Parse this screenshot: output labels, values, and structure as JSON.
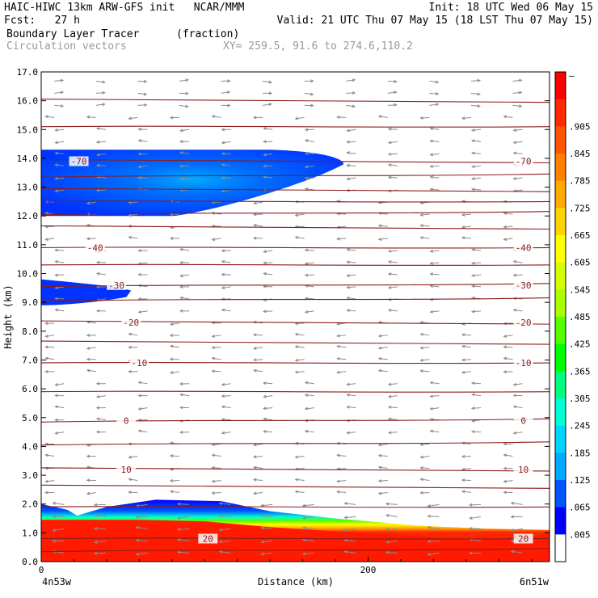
{
  "header": {
    "line1_left": "HAIC-HIWC 13km ARW-GFS init   NCAR/MMM",
    "line1_right": "Init: 18 UTC Wed 06 May 15",
    "line2_left": "Fcst:   27 h",
    "line2_right": "Valid: 21 UTC Thu 07 May 15 (18 LST Thu 07 May 15)",
    "field_name": "Boundary Layer Tracer",
    "field_units": "(fraction)",
    "vectors_label": "Circulation vectors",
    "xy_label": "XY= 259.5, 91.6 to 274.6,110.2"
  },
  "chart_data": {
    "type": "heatmap",
    "xlabel": "Distance (km)",
    "ylabel": "Height (km)",
    "ylim": [
      0,
      17
    ],
    "xlim": [
      0,
      311
    ],
    "x_ticks": [
      {
        "v": 0,
        "label": "0"
      },
      {
        "v": 200,
        "label": "200"
      }
    ],
    "y_ticks": [
      "0.0",
      "1.0",
      "2.0",
      "3.0",
      "4.0",
      "5.0",
      "6.0",
      "7.0",
      "8.0",
      "9.0",
      "10.0",
      "11.0",
      "12.0",
      "13.0",
      "14.0",
      "15.0",
      "16.0",
      "17.0"
    ],
    "x_endpoint_labels": {
      "left": "4n53w",
      "right": "6n51w"
    },
    "colorbar": {
      "labels": [
        "–",
        ".905",
        ".845",
        ".785",
        ".725",
        ".665",
        ".605",
        ".545",
        ".485",
        ".425",
        ".365",
        ".305",
        ".245",
        ".185",
        ".125",
        ".065",
        ".005"
      ],
      "colors": [
        "#ff0000",
        "#ff2a00",
        "#ff5500",
        "#ff7f00",
        "#ffaa00",
        "#ffd400",
        "#ffff00",
        "#d4ff00",
        "#aaff00",
        "#55ff00",
        "#00ff00",
        "#00ff7f",
        "#00ffd4",
        "#00d4ff",
        "#00aaff",
        "#0055ff",
        "#0000ff",
        "#ffffff"
      ]
    },
    "temperature_contours": [
      {
        "label": "-70",
        "height_km": 13.9,
        "label_x_km": [
          23,
          295
        ]
      },
      {
        "label": "-40",
        "height_km": 10.9,
        "label_x_km": [
          33,
          295
        ]
      },
      {
        "label": "-30",
        "height_km": 9.6,
        "label_x_km": [
          46,
          295
        ]
      },
      {
        "label": "-20",
        "height_km": 8.3,
        "label_x_km": [
          55,
          295
        ]
      },
      {
        "label": "-10",
        "height_km": 6.9,
        "label_x_km": [
          60,
          295
        ]
      },
      {
        "label": "0",
        "height_km": 4.9,
        "label_x_km": [
          52,
          295
        ]
      },
      {
        "label": "10",
        "height_km": 3.2,
        "label_x_km": [
          52,
          295
        ]
      },
      {
        "label": "20",
        "height_km": 0.8,
        "label_x_km": [
          102,
          295
        ]
      }
    ],
    "unlabeled_contour_heights_km": [
      16.0,
      15.1,
      13.4,
      12.9,
      12.5,
      12.1,
      11.6,
      10.3,
      9.1,
      7.6,
      5.9,
      4.1,
      2.6,
      1.9,
      0.4
    ],
    "tracer_regions": [
      {
        "name": "upper-level plume",
        "x_km": [
          0,
          185
        ],
        "height_km": [
          12.0,
          14.3
        ]
      },
      {
        "name": "mid-level patch",
        "x_km": [
          0,
          55
        ],
        "height_km": [
          8.9,
          9.8
        ]
      },
      {
        "name": "boundary layer",
        "x_km": [
          0,
          311
        ],
        "height_km": [
          0.0,
          2.2
        ]
      }
    ],
    "grid": false,
    "legend": "right-colorbar"
  }
}
